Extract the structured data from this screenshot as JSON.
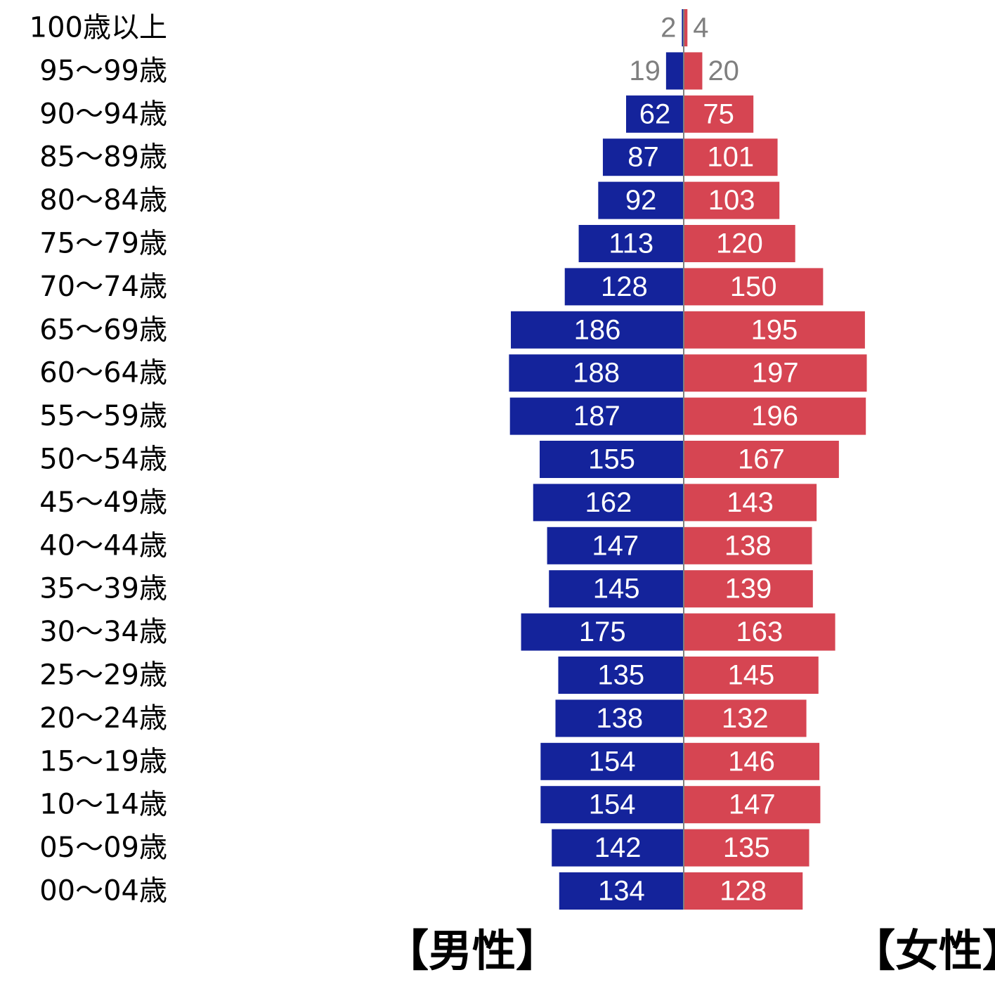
{
  "colors": {
    "male": "#14239b",
    "female": "#d64552",
    "center_line": "#7f7f7f",
    "outside_label": "#7f7f7f",
    "inside_label": "#ffffff"
  },
  "labels": {
    "male": "【男性】",
    "female": "【女性】"
  },
  "chart_data": {
    "type": "bar",
    "orientation": "horizontal",
    "layout": "population-pyramid",
    "categories": [
      "100歳以上",
      "95～99歳",
      "90～94歳",
      "85～89歳",
      "80～84歳",
      "75～79歳",
      "70～74歳",
      "65～69歳",
      "60～64歳",
      "55～59歳",
      "50～54歳",
      "45～49歳",
      "40～44歳",
      "35～39歳",
      "30～34歳",
      "25～29歳",
      "20～24歳",
      "15～19歳",
      "10～14歳",
      "05～09歳",
      "00～04歳"
    ],
    "series": [
      {
        "name": "【男性】",
        "side": "left",
        "values": [
          2,
          19,
          62,
          87,
          92,
          113,
          128,
          186,
          188,
          187,
          155,
          162,
          147,
          145,
          175,
          135,
          138,
          154,
          154,
          142,
          134
        ]
      },
      {
        "name": "【女性】",
        "side": "right",
        "values": [
          4,
          20,
          75,
          101,
          103,
          120,
          150,
          195,
          197,
          196,
          167,
          143,
          138,
          139,
          163,
          145,
          132,
          146,
          147,
          135,
          128
        ]
      }
    ],
    "grid": false,
    "legend": "bottom"
  }
}
